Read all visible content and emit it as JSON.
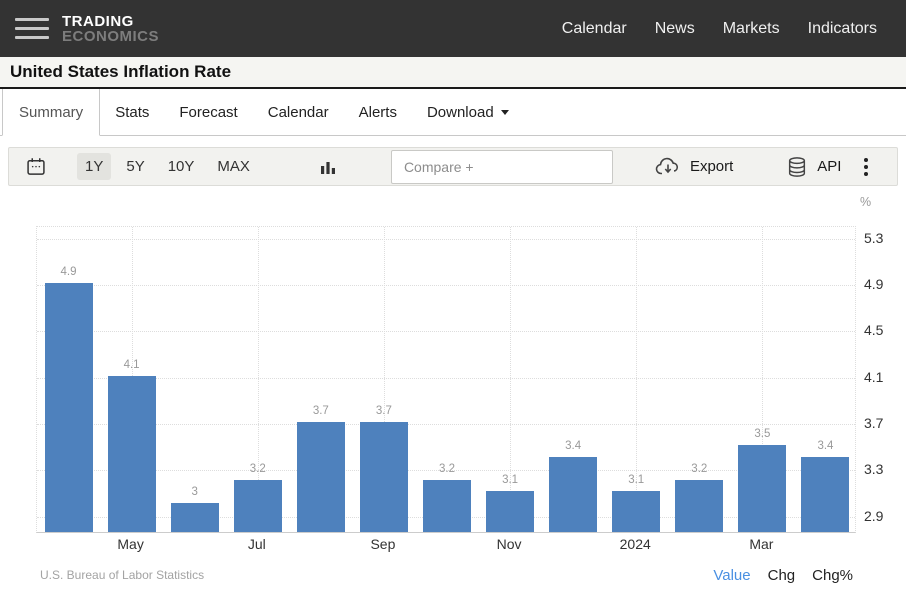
{
  "navbar": {
    "logo_line1": "TRADING",
    "logo_line2": "ECONOMICS",
    "items": [
      "Calendar",
      "News",
      "Markets",
      "Indicators"
    ]
  },
  "titlebar": {
    "title": "United States Inflation Rate"
  },
  "tabs": {
    "items": [
      "Summary",
      "Stats",
      "Forecast",
      "Calendar",
      "Alerts",
      "Download"
    ],
    "active": "Summary"
  },
  "toolbar": {
    "ranges": [
      "1Y",
      "5Y",
      "10Y",
      "MAX"
    ],
    "active_range": "1Y",
    "compare_placeholder": "Compare +",
    "export_label": "Export",
    "api_label": "API"
  },
  "chart_data": {
    "type": "bar",
    "title": "United States Inflation Rate",
    "unit_label": "%",
    "categories": [
      "",
      "May",
      "",
      "Jul",
      "",
      "Sep",
      "",
      "Nov",
      "",
      "2024",
      "",
      "Mar",
      ""
    ],
    "values": [
      4.9,
      4.1,
      3,
      3.2,
      3.7,
      3.7,
      3.2,
      3.1,
      3.4,
      3.1,
      3.2,
      3.5,
      3.4
    ],
    "value_labels": [
      "4.9",
      "4.1",
      "3",
      "3.2",
      "3.7",
      "3.7",
      "3.2",
      "3.1",
      "3.4",
      "3.1",
      "3.2",
      "3.5",
      "3.4"
    ],
    "y_ticks": [
      5.3,
      4.9,
      4.5,
      4.1,
      3.7,
      3.3,
      2.9
    ],
    "ylim": [
      2.75,
      5.4
    ],
    "bar_color": "#4e81bd",
    "grid": "dotted",
    "legend": "none"
  },
  "footer": {
    "source": "U.S. Bureau of Labor Statistics",
    "modes": [
      "Value",
      "Chg",
      "Chg%"
    ],
    "active_mode": "Value",
    "active_color": "#4a90e2"
  }
}
